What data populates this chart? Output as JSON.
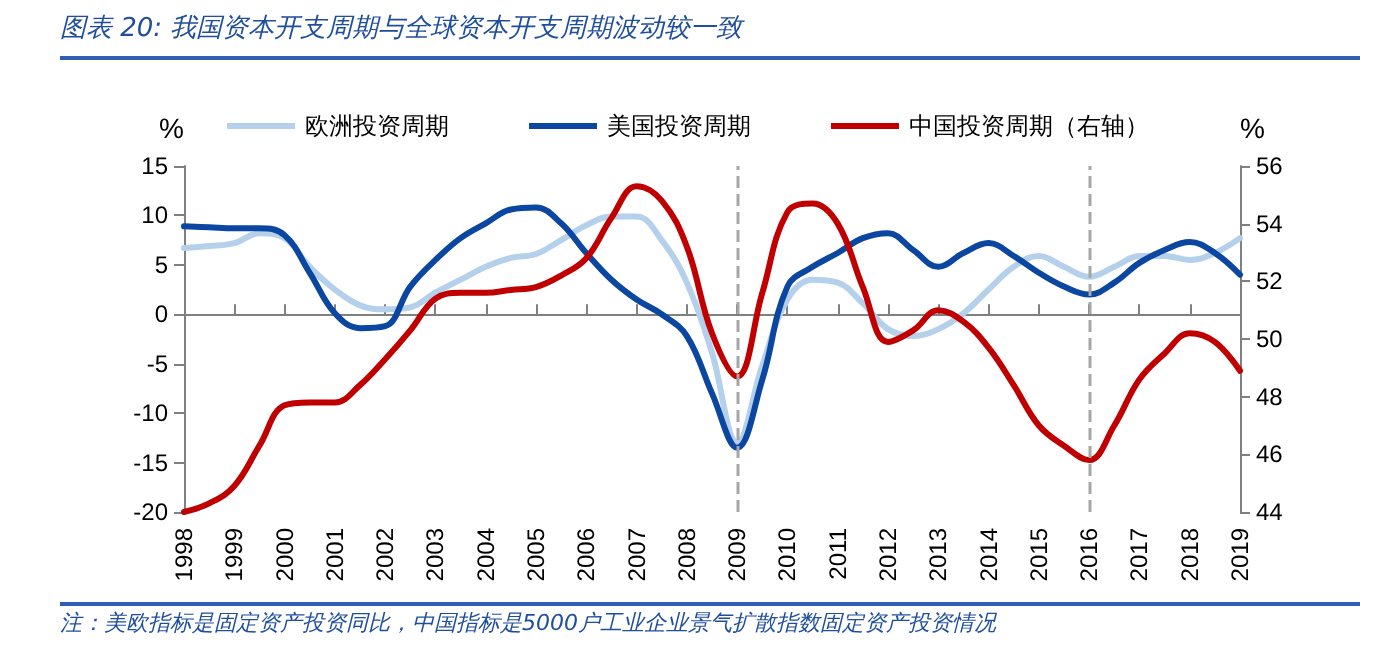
{
  "chart_data": {
    "type": "line",
    "title": "图表 20: 我国资本开支周期与全球资本开支周期波动较一致",
    "ylabel": "%",
    "y2label": "%",
    "annotations": [
      "注：美欧指标是固定资产投资同比，中国指标是5000户工业企业景气扩散指数固定资产投资情况"
    ],
    "x": [
      1998,
      1998.5,
      1999,
      1999.5,
      2000,
      2000.5,
      2001,
      2001.5,
      2002,
      2002.5,
      2003,
      2003.5,
      2004,
      2004.5,
      2005,
      2005.5,
      2006,
      2006.5,
      2007,
      2007.5,
      2008,
      2008.5,
      2009,
      2009.5,
      2010,
      2010.5,
      2011,
      2011.5,
      2012,
      2012.5,
      2013,
      2013.5,
      2014,
      2014.5,
      2015,
      2015.5,
      2016,
      2016.5,
      2017,
      2017.5,
      2018,
      2018.5,
      2019
    ],
    "series": [
      {
        "name": "欧洲投资周期",
        "color": "#b4d0ea",
        "values": [
          6.7,
          6.9,
          7.2,
          8.2,
          7.7,
          4.8,
          2.5,
          0.9,
          0.5,
          0.7,
          2.2,
          3.5,
          4.8,
          5.7,
          6.1,
          7.5,
          9.0,
          9.9,
          9.9,
          7.5,
          3.2,
          -3.9,
          -13.0,
          -5.2,
          1.5,
          3.5,
          3.2,
          1.1,
          -1.5,
          -2.2,
          -1.5,
          0.1,
          2.5,
          4.8,
          5.9,
          4.8,
          3.8,
          4.8,
          5.9,
          5.9,
          5.5,
          6.2,
          7.7
        ]
      },
      {
        "name": "美国投资周期",
        "color": "#0b47a1",
        "values": [
          8.9,
          8.8,
          8.7,
          8.7,
          8.0,
          4.2,
          0.1,
          -1.4,
          -1.2,
          2.8,
          5.5,
          7.7,
          9.2,
          10.6,
          10.8,
          9.2,
          6.2,
          3.5,
          1.5,
          0.0,
          -2.2,
          -8.0,
          -13.5,
          -6.6,
          2.8,
          4.8,
          6.2,
          7.7,
          8.2,
          6.5,
          4.8,
          6.2,
          7.2,
          5.9,
          4.2,
          2.8,
          2.0,
          3.2,
          5.2,
          6.5,
          7.3,
          6.2,
          4.0
        ]
      },
      {
        "name": "中国投资周期（右轴）",
        "color": "#c00000",
        "axis": "y2",
        "values": [
          44.0,
          44.3,
          44.9,
          46.3,
          47.7,
          47.8,
          47.8,
          48.4,
          49.3,
          50.3,
          51.4,
          51.6,
          51.6,
          51.7,
          51.8,
          52.2,
          52.8,
          54.2,
          55.3,
          54.8,
          53.2,
          50.2,
          48.7,
          51.6,
          54.4,
          54.7,
          54.0,
          51.8,
          49.9,
          50.3,
          51.0,
          50.6,
          49.7,
          48.4,
          47.0,
          46.3,
          45.8,
          47.0,
          48.6,
          49.5,
          50.2,
          49.9,
          48.9
        ]
      }
    ],
    "xlim": [
      1998,
      2019
    ],
    "xticks": [
      1998,
      1999,
      2000,
      2001,
      2002,
      2003,
      2004,
      2005,
      2006,
      2007,
      2008,
      2009,
      2010,
      2011,
      2012,
      2013,
      2014,
      2015,
      2016,
      2017,
      2018,
      2019
    ],
    "ylim": [
      -20,
      15
    ],
    "yticks": [
      -20,
      -15,
      -10,
      -5,
      0,
      5,
      10,
      15
    ],
    "y2lim": [
      44,
      56
    ],
    "y2ticks": [
      44,
      46,
      48,
      50,
      52,
      54,
      56
    ],
    "ref_lines": [
      {
        "axis": "x",
        "value": 2009,
        "label": null,
        "color": "#a6a6a6",
        "line_style": "dashed"
      },
      {
        "axis": "x",
        "value": 2016,
        "label": null,
        "color": "#a6a6a6",
        "line_style": "dashed"
      }
    ],
    "legend": "top",
    "grid": false,
    "marker": "none",
    "line_style": "solid"
  }
}
